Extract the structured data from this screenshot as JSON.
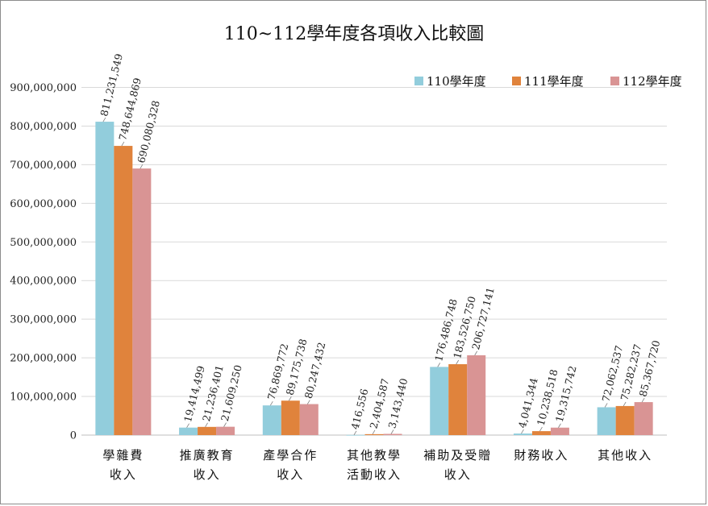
{
  "chart_data": {
    "type": "bar",
    "title": "110~112學年度各項收入比較圖",
    "xlabel": "",
    "ylabel": "",
    "ylim": [
      0,
      900000000
    ],
    "yticks": [
      "0",
      "100,000,000",
      "200,000,000",
      "300,000,000",
      "400,000,000",
      "500,000,000",
      "600,000,000",
      "700,000,000",
      "800,000,000",
      "900,000,000"
    ],
    "grid": true,
    "legend_position": "top-right",
    "categories": [
      [
        "學雜費",
        "收入"
      ],
      [
        "推廣教育",
        "收入"
      ],
      [
        "產學合作",
        "收入"
      ],
      [
        "其他教學",
        "活動收入"
      ],
      [
        "補助及受贈",
        "收入"
      ],
      [
        "財務收入"
      ],
      [
        "其他收入"
      ]
    ],
    "series": [
      {
        "name": "110學年度",
        "color": "#92cddc",
        "values": [
          811231549,
          19414499,
          76869772,
          416556,
          176486748,
          4041344,
          72062537
        ],
        "labels": [
          "811,231,549",
          "19,414,499",
          "76,869,772",
          "416,556",
          "176,486,748",
          "4,041,344",
          "72,062,537"
        ]
      },
      {
        "name": "111學年度",
        "color": "#e0833c",
        "values": [
          748644869,
          21236401,
          89175738,
          2404587,
          183526750,
          10238518,
          75282237
        ],
        "labels": [
          "748,644,869",
          "21,236,401",
          "89,175,738",
          "2,404,587",
          "183,526,750",
          "10,238,518",
          "75,282,237"
        ]
      },
      {
        "name": "112學年度",
        "color": "#d99494",
        "values": [
          690080328,
          21609250,
          80247432,
          3143440,
          206727141,
          19315742,
          85367720
        ],
        "labels": [
          "690,080,328",
          "21,609,250",
          "80,247,432",
          "3,143,440",
          "206,727,141",
          "19,315,742",
          "85,367,720"
        ]
      }
    ]
  }
}
